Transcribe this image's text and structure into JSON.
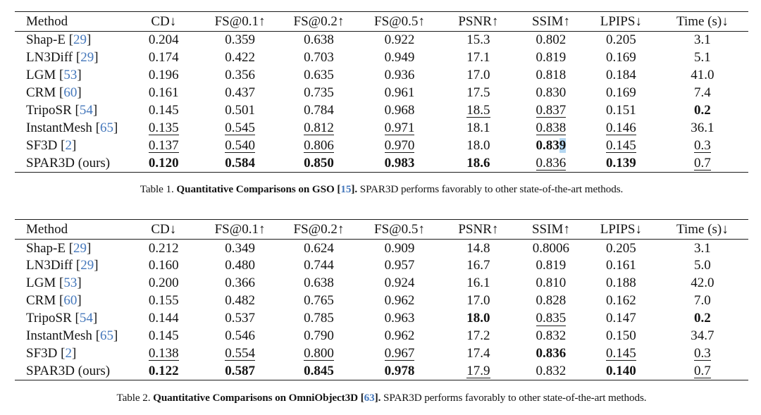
{
  "colors": {
    "citation_blue": "#4477bb",
    "selection_highlight": "#b4d7f1",
    "rule_color": "#1c1c1c"
  },
  "columns": [
    "Method",
    "CD↓",
    "FS@0.1↑",
    "FS@0.2↑",
    "FS@0.5↑",
    "PSNR↑",
    "SSIM↑",
    "LPIPS↓",
    "Time (s)↓"
  ],
  "tables": [
    {
      "caption": {
        "label": "Table 1.",
        "title": "Quantitative Comparisons on GSO [",
        "cite": "15",
        "title_end": "].",
        "text": "SPAR3D performs favorably to other state-of-the-art methods."
      },
      "rows": [
        {
          "method": "Shap-E",
          "cite": "29",
          "cells": [
            [
              "0.204",
              "p"
            ],
            [
              "0.359",
              "p"
            ],
            [
              "0.638",
              "p"
            ],
            [
              "0.922",
              "p"
            ],
            [
              "15.3",
              "p"
            ],
            [
              "0.802",
              "p"
            ],
            [
              "0.205",
              "p"
            ],
            [
              "3.1",
              "p"
            ]
          ]
        },
        {
          "method": "LN3Diff",
          "cite": "29",
          "cells": [
            [
              "0.174",
              "p"
            ],
            [
              "0.422",
              "p"
            ],
            [
              "0.703",
              "p"
            ],
            [
              "0.949",
              "p"
            ],
            [
              "17.1",
              "p"
            ],
            [
              "0.819",
              "p"
            ],
            [
              "0.169",
              "p"
            ],
            [
              "5.1",
              "p"
            ]
          ]
        },
        {
          "method": "LGM",
          "cite": "53",
          "cells": [
            [
              "0.196",
              "p"
            ],
            [
              "0.356",
              "p"
            ],
            [
              "0.635",
              "p"
            ],
            [
              "0.936",
              "p"
            ],
            [
              "17.0",
              "p"
            ],
            [
              "0.818",
              "p"
            ],
            [
              "0.184",
              "p"
            ],
            [
              "41.0",
              "p"
            ]
          ]
        },
        {
          "method": "CRM",
          "cite": "60",
          "cells": [
            [
              "0.161",
              "p"
            ],
            [
              "0.437",
              "p"
            ],
            [
              "0.735",
              "p"
            ],
            [
              "0.961",
              "p"
            ],
            [
              "17.5",
              "p"
            ],
            [
              "0.830",
              "p"
            ],
            [
              "0.169",
              "p"
            ],
            [
              "7.4",
              "p"
            ]
          ]
        },
        {
          "method": "TripoSR",
          "cite": "54",
          "cells": [
            [
              "0.145",
              "p"
            ],
            [
              "0.501",
              "p"
            ],
            [
              "0.784",
              "p"
            ],
            [
              "0.968",
              "p"
            ],
            [
              "18.5",
              "u"
            ],
            [
              "0.837",
              "u"
            ],
            [
              "0.151",
              "p"
            ],
            [
              "0.2",
              "b"
            ]
          ]
        },
        {
          "method": "InstantMesh",
          "cite": "65",
          "cells": [
            [
              "0.135",
              "u"
            ],
            [
              "0.545",
              "u"
            ],
            [
              "0.812",
              "u"
            ],
            [
              "0.971",
              "u"
            ],
            [
              "18.1",
              "p"
            ],
            [
              "0.838",
              "u"
            ],
            [
              "0.146",
              "u"
            ],
            [
              "36.1",
              "p"
            ]
          ]
        },
        {
          "method": "SF3D",
          "cite": "2",
          "cells": [
            [
              "0.137",
              "u"
            ],
            [
              "0.540",
              "u"
            ],
            [
              "0.806",
              "u"
            ],
            [
              "0.970",
              "u"
            ],
            [
              "18.0",
              "p"
            ],
            [
              "0.839",
              "b",
              "hl"
            ],
            [
              "0.145",
              "u"
            ],
            [
              "0.3",
              "u"
            ]
          ]
        },
        {
          "method": "SPAR3D (ours)",
          "cite": null,
          "cells": [
            [
              "0.120",
              "b"
            ],
            [
              "0.584",
              "b"
            ],
            [
              "0.850",
              "b"
            ],
            [
              "0.983",
              "b"
            ],
            [
              "18.6",
              "b"
            ],
            [
              "0.836",
              "u"
            ],
            [
              "0.139",
              "b"
            ],
            [
              "0.7",
              "u"
            ]
          ]
        }
      ]
    },
    {
      "caption": {
        "label": "Table 2.",
        "title": "Quantitative Comparisons on OmniObject3D [",
        "cite": "63",
        "title_end": "].",
        "text": "SPAR3D performs favorably to other state-of-the-art methods."
      },
      "rows": [
        {
          "method": "Shap-E",
          "cite": "29",
          "cells": [
            [
              "0.212",
              "p"
            ],
            [
              "0.349",
              "p"
            ],
            [
              "0.624",
              "p"
            ],
            [
              "0.909",
              "p"
            ],
            [
              "14.8",
              "p"
            ],
            [
              "0.8006",
              "p"
            ],
            [
              "0.205",
              "p"
            ],
            [
              "3.1",
              "p"
            ]
          ]
        },
        {
          "method": "LN3Diff",
          "cite": "29",
          "cells": [
            [
              "0.160",
              "p"
            ],
            [
              "0.480",
              "p"
            ],
            [
              "0.744",
              "p"
            ],
            [
              "0.957",
              "p"
            ],
            [
              "16.7",
              "p"
            ],
            [
              "0.819",
              "p"
            ],
            [
              "0.161",
              "p"
            ],
            [
              "5.0",
              "p"
            ]
          ]
        },
        {
          "method": "LGM",
          "cite": "53",
          "cells": [
            [
              "0.200",
              "p"
            ],
            [
              "0.366",
              "p"
            ],
            [
              "0.638",
              "p"
            ],
            [
              "0.924",
              "p"
            ],
            [
              "16.1",
              "p"
            ],
            [
              "0.810",
              "p"
            ],
            [
              "0.188",
              "p"
            ],
            [
              "42.0",
              "p"
            ]
          ]
        },
        {
          "method": "CRM",
          "cite": "60",
          "cells": [
            [
              "0.155",
              "p"
            ],
            [
              "0.482",
              "p"
            ],
            [
              "0.765",
              "p"
            ],
            [
              "0.962",
              "p"
            ],
            [
              "17.0",
              "p"
            ],
            [
              "0.828",
              "p"
            ],
            [
              "0.162",
              "p"
            ],
            [
              "7.0",
              "p"
            ]
          ]
        },
        {
          "method": "TripoSR",
          "cite": "54",
          "cells": [
            [
              "0.144",
              "p"
            ],
            [
              "0.537",
              "p"
            ],
            [
              "0.785",
              "p"
            ],
            [
              "0.963",
              "p"
            ],
            [
              "18.0",
              "b"
            ],
            [
              "0.835",
              "u"
            ],
            [
              "0.147",
              "p"
            ],
            [
              "0.2",
              "b"
            ]
          ]
        },
        {
          "method": "InstantMesh",
          "cite": "65",
          "cells": [
            [
              "0.145",
              "p"
            ],
            [
              "0.546",
              "p"
            ],
            [
              "0.790",
              "p"
            ],
            [
              "0.962",
              "p"
            ],
            [
              "17.2",
              "p"
            ],
            [
              "0.832",
              "p"
            ],
            [
              "0.150",
              "p"
            ],
            [
              "34.7",
              "p"
            ]
          ]
        },
        {
          "method": "SF3D",
          "cite": "2",
          "cells": [
            [
              "0.138",
              "u"
            ],
            [
              "0.554",
              "u"
            ],
            [
              "0.800",
              "u"
            ],
            [
              "0.967",
              "u"
            ],
            [
              "17.4",
              "p"
            ],
            [
              "0.836",
              "b"
            ],
            [
              "0.145",
              "u"
            ],
            [
              "0.3",
              "u"
            ]
          ]
        },
        {
          "method": "SPAR3D (ours)",
          "cite": null,
          "cells": [
            [
              "0.122",
              "b"
            ],
            [
              "0.587",
              "b"
            ],
            [
              "0.845",
              "b"
            ],
            [
              "0.978",
              "b"
            ],
            [
              "17.9",
              "u"
            ],
            [
              "0.832",
              "p"
            ],
            [
              "0.140",
              "b"
            ],
            [
              "0.7",
              "u"
            ]
          ]
        }
      ]
    }
  ]
}
